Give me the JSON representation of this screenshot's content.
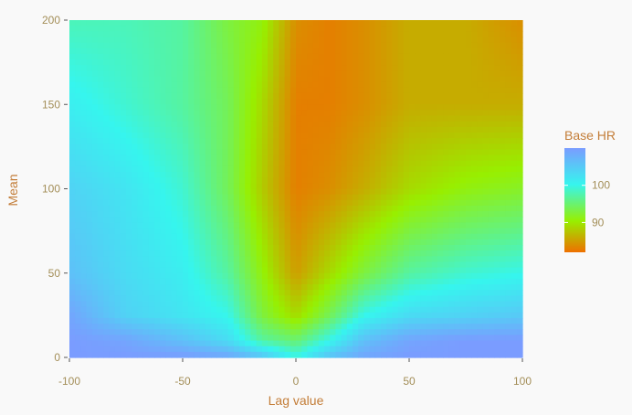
{
  "chart_data": {
    "type": "heatmap",
    "title": "",
    "xlabel": "Lag value",
    "ylabel": "Mean",
    "xlim": [
      -100,
      100
    ],
    "ylim": [
      0,
      200
    ],
    "x_ticks": [
      -100,
      -50,
      0,
      50,
      100
    ],
    "x_tick_labels": [
      "-100",
      "-50",
      "0",
      "50",
      "100"
    ],
    "y_ticks": [
      0,
      50,
      100,
      150,
      200
    ],
    "y_tick_labels": [
      "0",
      "50",
      "100",
      "150",
      "200"
    ],
    "grid": false,
    "legend": {
      "title": "Base HR",
      "placement": "right",
      "ticks": [
        90,
        100
      ],
      "tick_labels": [
        "90",
        "100"
      ],
      "range": [
        82,
        110
      ],
      "colors": [
        "#ef7000",
        "#98ef00",
        "#36f5ee",
        "#7a9cff"
      ]
    },
    "x": [
      -100,
      -75,
      -50,
      -30,
      -15,
      0,
      15,
      30,
      50,
      75,
      100
    ],
    "y": [
      0,
      10,
      25,
      50,
      100,
      150,
      200
    ],
    "z": [
      [
        110,
        110,
        110,
        109,
        106,
        100,
        106,
        109,
        110,
        110,
        110
      ],
      [
        110,
        109,
        106,
        103,
        97,
        95,
        100,
        106,
        109,
        110,
        110
      ],
      [
        109,
        104,
        102,
        100,
        93,
        89,
        94,
        100,
        103,
        104,
        105
      ],
      [
        106,
        103,
        101,
        97,
        91,
        85,
        89,
        93,
        97,
        99,
        100
      ],
      [
        104,
        102,
        99,
        94,
        88,
        83,
        84,
        86,
        89,
        91,
        92
      ],
      [
        101,
        99,
        97,
        94,
        89,
        83,
        83,
        84,
        86,
        86,
        86
      ],
      [
        98,
        98,
        97,
        93,
        91,
        84,
        83,
        84,
        86,
        86,
        84
      ]
    ]
  },
  "colors": {
    "background": "#f9f9f9",
    "text": "#c37d38",
    "tick_label": "#a38e58",
    "tick_mark": "#555555"
  }
}
